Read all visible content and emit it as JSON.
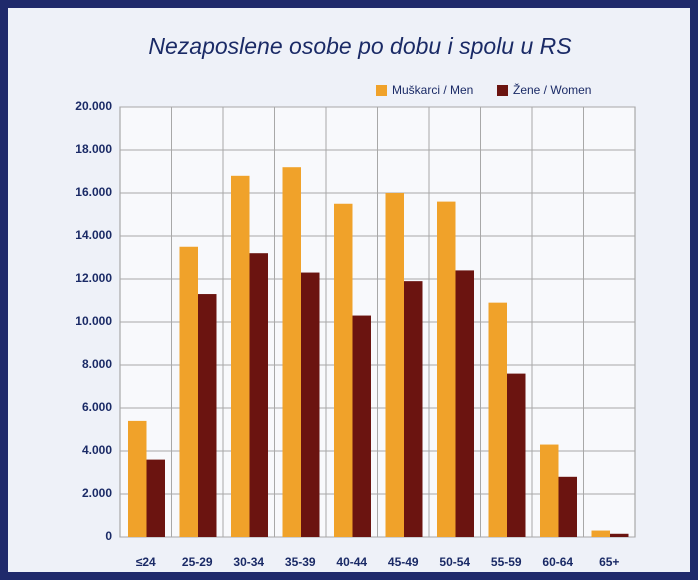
{
  "chart_data": {
    "type": "bar",
    "title": "Nezaposlene osobe po dobu i spolu u RS",
    "categories": [
      "≤24",
      "25-29",
      "30-34",
      "35-39",
      "40-44",
      "45-49",
      "50-54",
      "55-59",
      "60-64",
      "65+"
    ],
    "series": [
      {
        "name": "Muškarci / Men",
        "color": "#f0a22a",
        "values": [
          5400,
          13500,
          16800,
          17200,
          15500,
          16000,
          15600,
          10900,
          4300,
          300
        ]
      },
      {
        "name": "Žene / Women",
        "color": "#6b1410",
        "values": [
          3600,
          11300,
          13200,
          12300,
          10300,
          11900,
          12400,
          7600,
          2800,
          150
        ]
      }
    ],
    "ylim": [
      0,
      20000
    ],
    "yticks": [
      0,
      {
        "value": 2000,
        "label": "2.000"
      },
      {
        "value": 4000,
        "label": "4.000"
      },
      {
        "value": 6000,
        "label": "6.000"
      },
      {
        "value": 8000,
        "label": "8.000"
      },
      {
        "value": 10000,
        "label": "10.000"
      },
      {
        "value": 12000,
        "label": "12.000"
      },
      {
        "value": 14000,
        "label": "14.000"
      },
      {
        "value": 16000,
        "label": "16.000"
      },
      {
        "value": 18000,
        "label": "18.000"
      },
      {
        "value": 20000,
        "label": "20.000"
      }
    ],
    "grid": true
  }
}
